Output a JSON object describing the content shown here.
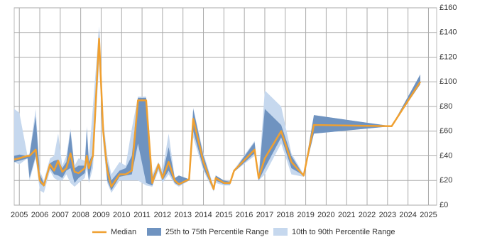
{
  "chart_data": {
    "type": "range-line",
    "x": [
      2004.75,
      2005.0,
      2005.4,
      2005.5,
      2005.8,
      2006.0,
      2006.2,
      2006.5,
      2006.7,
      2006.9,
      2007.1,
      2007.3,
      2007.5,
      2007.7,
      2007.9,
      2008.2,
      2008.3,
      2008.4,
      2008.6,
      2008.9,
      2009.1,
      2009.3,
      2009.5,
      2009.9,
      2010.2,
      2010.5,
      2010.8,
      2011.2,
      2011.5,
      2011.8,
      2012.0,
      2012.3,
      2012.6,
      2012.8,
      2013.3,
      2013.5,
      2014.0,
      2014.5,
      2014.6,
      2015.0,
      2015.3,
      2015.5,
      2016.5,
      2016.7,
      2017.0,
      2017.8,
      2018.3,
      2018.9,
      2019.4,
      2023.2,
      2024.6
    ],
    "series": [
      {
        "name": "10th to 90th Percentile Range",
        "color": "#c6d8ee",
        "low": [
          35,
          33,
          38,
          20,
          38,
          12,
          10,
          28,
          22,
          20,
          20,
          25,
          18,
          15,
          18,
          22,
          30,
          18,
          30,
          115,
          50,
          18,
          10,
          20,
          20,
          20,
          20,
          16,
          15,
          28,
          18,
          25,
          17,
          15,
          20,
          55,
          28,
          11,
          18,
          16,
          16,
          27,
          40,
          20,
          25,
          50,
          25,
          23,
          58,
          64,
          98
        ],
        "high": [
          78,
          75,
          40,
          42,
          78,
          28,
          20,
          38,
          40,
          58,
          32,
          40,
          62,
          32,
          38,
          36,
          64,
          38,
          80,
          145,
          70,
          40,
          25,
          35,
          32,
          62,
          88,
          88,
          25,
          35,
          28,
          58,
          22,
          24,
          21,
          79,
          42,
          15,
          24,
          20,
          20,
          29,
          52,
          23,
          93,
          80,
          42,
          25,
          73,
          64,
          106
        ]
      },
      {
        "name": "25th to 75th Percentile Range",
        "color": "#6f93c0",
        "low": [
          35,
          36,
          38,
          22,
          40,
          18,
          15,
          30,
          25,
          24,
          22,
          28,
          30,
          18,
          22,
          26,
          35,
          20,
          38,
          125,
          55,
          20,
          12,
          23,
          24,
          25,
          50,
          18,
          16,
          30,
          20,
          28,
          18,
          16,
          20,
          60,
          30,
          12,
          20,
          17,
          17,
          27,
          42,
          20,
          30,
          55,
          30,
          24,
          58,
          64,
          98
        ],
        "high": [
          40,
          41,
          40,
          41,
          72,
          25,
          18,
          34,
          36,
          37,
          30,
          35,
          60,
          30,
          32,
          32,
          62,
          35,
          42,
          142,
          65,
          35,
          20,
          28,
          30,
          40,
          87,
          87,
          22,
          34,
          25,
          47,
          22,
          24,
          21,
          78,
          40,
          14,
          24,
          20,
          19,
          28,
          51,
          22,
          78,
          65,
          40,
          24,
          73,
          64,
          106
        ]
      },
      {
        "name": "Median",
        "color": "#f0a030",
        "values": [
          37,
          38,
          40,
          40,
          45,
          20,
          16,
          33,
          28,
          36,
          27,
          30,
          42,
          27,
          26,
          30,
          40,
          30,
          40,
          135,
          60,
          28,
          15,
          25,
          25,
          28,
          85,
          85,
          18,
          33,
          22,
          35,
          20,
          17,
          21,
          70,
          35,
          13,
          22,
          18,
          18,
          28,
          45,
          22,
          38,
          60,
          35,
          24,
          65,
          64,
          100
        ]
      }
    ],
    "xlim": [
      2004.75,
      2025.4
    ],
    "xticks": [
      2005,
      2006,
      2007,
      2008,
      2009,
      2010,
      2011,
      2012,
      2013,
      2014,
      2015,
      2016,
      2017,
      2018,
      2019,
      2020,
      2021,
      2022,
      2023,
      2024,
      2025
    ],
    "ylim": [
      0,
      160
    ],
    "yticks": [
      {
        "value": 0,
        "label": "£0"
      },
      {
        "value": 20,
        "label": "£20"
      },
      {
        "value": 40,
        "label": "£40"
      },
      {
        "value": 60,
        "label": "£60"
      },
      {
        "value": 80,
        "label": "£80"
      },
      {
        "value": 100,
        "label": "£100"
      },
      {
        "value": 120,
        "label": "£120"
      },
      {
        "value": 140,
        "label": "£140"
      },
      {
        "value": 160,
        "label": "£160"
      }
    ],
    "grid": true
  }
}
